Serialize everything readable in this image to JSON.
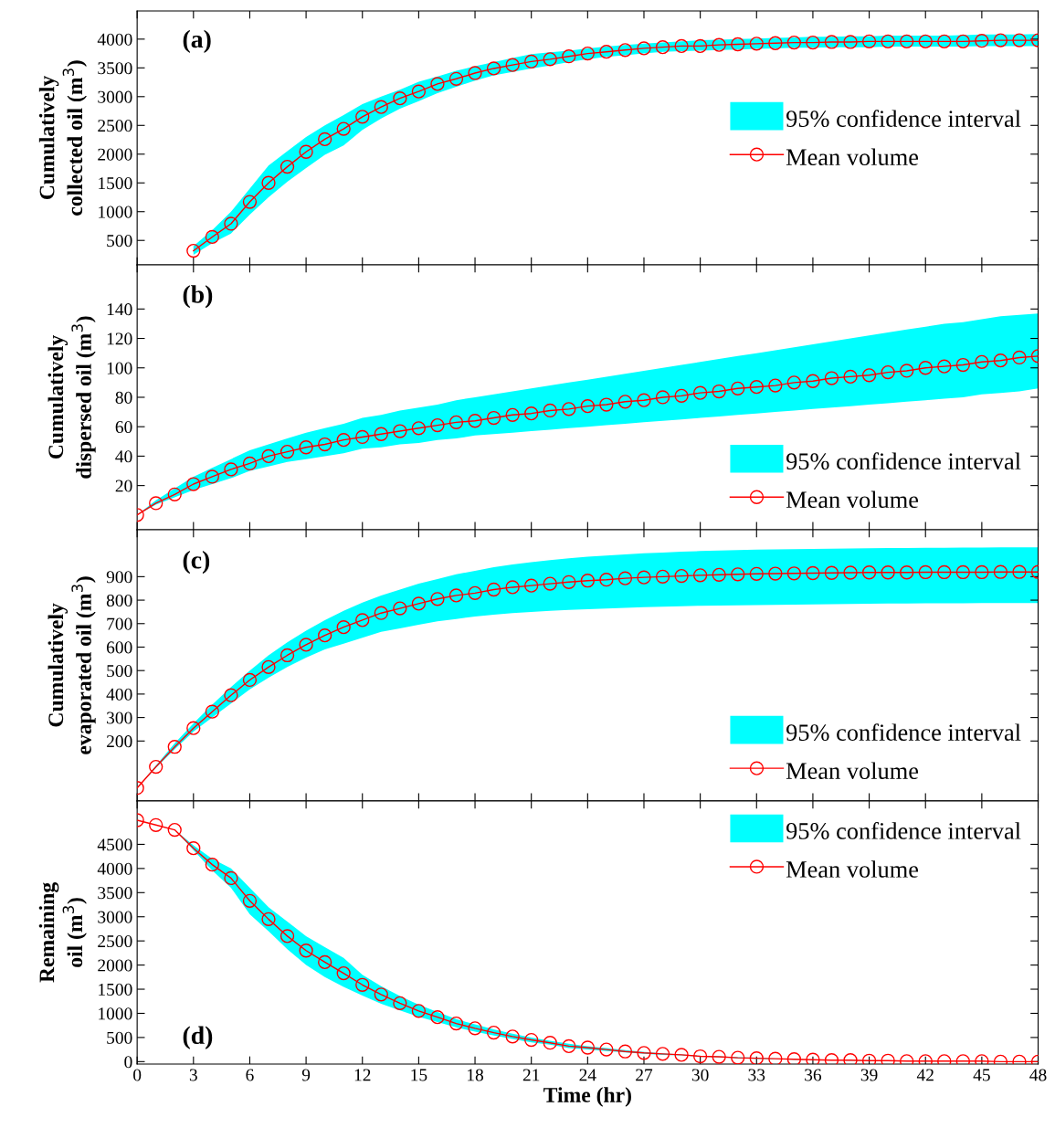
{
  "chart_data": [
    {
      "type": "line",
      "ylabel": "Cumulatively\ncollected oil (m$^{3}$)",
      "annotations": [
        "(a)",
        "95% confidence interval"
      ],
      "xlim": [
        0,
        48
      ],
      "ylim": [
        75,
        4490
      ],
      "xticks": [
        0,
        3,
        6,
        9,
        12,
        15,
        18,
        21,
        24,
        27,
        30,
        33,
        36,
        39,
        42,
        45,
        48
      ],
      "yticks": [
        500,
        1000,
        1500,
        2000,
        2500,
        3000,
        3500,
        4000
      ],
      "tick_labels": "y",
      "legend": "center right",
      "grid": false,
      "marker": "circle",
      "line_style": "solid",
      "series": [
        {
          "name": "Mean volume",
          "color": "#ff0000",
          "x": [
            3,
            4,
            5,
            6,
            7,
            8,
            9,
            10,
            11,
            12,
            13,
            14,
            15,
            16,
            17,
            18,
            19,
            20,
            21,
            22,
            23,
            24,
            25,
            26,
            27,
            28,
            29,
            30,
            31,
            32,
            33,
            34,
            35,
            36,
            37,
            38,
            39,
            40,
            41,
            42,
            43,
            44,
            45,
            46,
            47,
            48
          ],
          "values": [
            320,
            560,
            790,
            1170,
            1500,
            1780,
            2040,
            2260,
            2440,
            2650,
            2820,
            2970,
            3090,
            3220,
            3310,
            3410,
            3490,
            3550,
            3610,
            3650,
            3700,
            3750,
            3780,
            3810,
            3840,
            3860,
            3880,
            3880,
            3900,
            3910,
            3920,
            3930,
            3940,
            3940,
            3950,
            3950,
            3960,
            3960,
            3960,
            3960,
            3960,
            3960,
            3970,
            3980,
            3980,
            3980
          ],
          "lower": [
            250,
            450,
            620,
            950,
            1250,
            1520,
            1760,
            1990,
            2150,
            2420,
            2620,
            2790,
            2920,
            3060,
            3170,
            3280,
            3370,
            3430,
            3490,
            3540,
            3600,
            3650,
            3690,
            3720,
            3750,
            3780,
            3790,
            3800,
            3810,
            3820,
            3830,
            3840,
            3850,
            3850,
            3860,
            3860,
            3860,
            3870,
            3870,
            3870,
            3870,
            3870,
            3880,
            3880,
            3880,
            3880
          ],
          "upper": [
            400,
            680,
            1000,
            1400,
            1800,
            2050,
            2300,
            2500,
            2680,
            2870,
            3000,
            3120,
            3260,
            3350,
            3450,
            3530,
            3600,
            3670,
            3740,
            3770,
            3800,
            3840,
            3870,
            3900,
            3920,
            3940,
            3960,
            3980,
            3990,
            4000,
            4010,
            4020,
            4030,
            4040,
            4040,
            4050,
            4050,
            4060,
            4060,
            4060,
            4060,
            4070,
            4080,
            4080,
            4080,
            4090
          ]
        }
      ]
    },
    {
      "type": "line",
      "ylabel": "Cumulatively\ndispersed oil (m$^{3}$)",
      "annotations": [
        "(b)",
        "95% confidence interval"
      ],
      "x": [
        0,
        1,
        2,
        3,
        4,
        5,
        6,
        7,
        8,
        9,
        10,
        11,
        12,
        13,
        14,
        15,
        16,
        17,
        18,
        19,
        20,
        21,
        22,
        23,
        24,
        25,
        26,
        27,
        28,
        29,
        30,
        31,
        32,
        33,
        34,
        35,
        36,
        37,
        38,
        39,
        40,
        41,
        42,
        43,
        44,
        45,
        46,
        47,
        48
      ],
      "xlim": [
        0,
        48
      ],
      "ylim": [
        -10,
        170
      ],
      "xticks": [
        0,
        3,
        6,
        9,
        12,
        15,
        18,
        21,
        24,
        27,
        30,
        33,
        36,
        39,
        42,
        45,
        48
      ],
      "yticks": [
        20,
        40,
        60,
        80,
        100,
        120,
        140
      ],
      "tick_labels": "y",
      "legend": "bottom right",
      "grid": false,
      "marker": "circle",
      "line_style": "solid",
      "series": [
        {
          "name": "Mean volume",
          "color": "#ff0000",
          "values": [
            0,
            8,
            14,
            21,
            26,
            31,
            35,
            40,
            43,
            46,
            48,
            51,
            53,
            55,
            57,
            59,
            61,
            63,
            64,
            66,
            68,
            69,
            71,
            72,
            74,
            75,
            77,
            78,
            80,
            81,
            83,
            84,
            86,
            87,
            88,
            90,
            91,
            93,
            94,
            95,
            97,
            98,
            100,
            101,
            102,
            104,
            105,
            107,
            108
          ],
          "lower": [
            0,
            7,
            12,
            17,
            21,
            25,
            30,
            33,
            36,
            38,
            40,
            42,
            45,
            46,
            48,
            49,
            51,
            52,
            54,
            55,
            56,
            57,
            58,
            59,
            60,
            61,
            62,
            63,
            64,
            65,
            66,
            67,
            68,
            69,
            70,
            71,
            72,
            73,
            74,
            75,
            76,
            77,
            78,
            79,
            80,
            82,
            83,
            84,
            86
          ],
          "upper": [
            0,
            10,
            18,
            26,
            32,
            38,
            44,
            48,
            52,
            56,
            59,
            62,
            66,
            68,
            71,
            73,
            75,
            78,
            80,
            82,
            84,
            86,
            88,
            90,
            92,
            94,
            96,
            98,
            100,
            102,
            104,
            106,
            108,
            110,
            112,
            114,
            116,
            118,
            120,
            122,
            124,
            126,
            128,
            130,
            131,
            133,
            135,
            136,
            137
          ]
        }
      ]
    },
    {
      "type": "line",
      "ylabel": "Cumulatively\nevaporated oil (m$^{3}$)",
      "annotations": [
        "(c)",
        "95% confidence interval"
      ],
      "x": [
        0,
        1,
        2,
        3,
        4,
        5,
        6,
        7,
        8,
        9,
        10,
        11,
        12,
        13,
        14,
        15,
        16,
        17,
        18,
        19,
        20,
        21,
        22,
        23,
        24,
        25,
        26,
        27,
        28,
        29,
        30,
        31,
        32,
        33,
        34,
        35,
        36,
        37,
        38,
        39,
        40,
        41,
        42,
        43,
        44,
        45,
        46,
        47,
        48
      ],
      "xlim": [
        0,
        48
      ],
      "ylim": [
        -55,
        1100
      ],
      "xticks": [
        0,
        3,
        6,
        9,
        12,
        15,
        18,
        21,
        24,
        27,
        30,
        33,
        36,
        39,
        42,
        45,
        48
      ],
      "yticks": [
        200,
        300,
        400,
        500,
        600,
        700,
        800,
        900
      ],
      "tick_labels": "y",
      "legend": "bottom right",
      "grid": false,
      "marker": "circle",
      "line_style": "solid",
      "series": [
        {
          "name": "Mean volume",
          "color": "#ff0000",
          "values": [
            0,
            90,
            175,
            255,
            325,
            395,
            460,
            515,
            565,
            610,
            650,
            685,
            715,
            745,
            765,
            785,
            805,
            820,
            830,
            845,
            855,
            862,
            870,
            877,
            883,
            887,
            893,
            897,
            900,
            903,
            906,
            908,
            910,
            912,
            913,
            914,
            915,
            916,
            917,
            918,
            918,
            918,
            919,
            919,
            919,
            919,
            920,
            920,
            920
          ],
          "lower": [
            0,
            85,
            165,
            240,
            300,
            360,
            420,
            470,
            515,
            555,
            590,
            615,
            640,
            665,
            680,
            695,
            710,
            720,
            730,
            738,
            745,
            750,
            755,
            758,
            761,
            764,
            767,
            770,
            772,
            774,
            776,
            777,
            778,
            779,
            780,
            781,
            782,
            783,
            784,
            785,
            786,
            786,
            787,
            787,
            787,
            788,
            788,
            788,
            788
          ],
          "upper": [
            0,
            95,
            190,
            275,
            355,
            430,
            500,
            565,
            620,
            670,
            715,
            755,
            790,
            820,
            845,
            870,
            890,
            910,
            925,
            940,
            952,
            962,
            970,
            978,
            985,
            990,
            995,
            1000,
            1003,
            1006,
            1009,
            1011,
            1013,
            1015,
            1016,
            1017,
            1018,
            1019,
            1020,
            1021,
            1022,
            1022,
            1023,
            1023,
            1024,
            1024,
            1025,
            1025,
            1025
          ]
        }
      ]
    },
    {
      "type": "line",
      "ylabel": "Remaining\noil (m$^{3}$)",
      "xlabel": "Time (hr)",
      "annotations": [
        "(d)",
        "95% confidence interval"
      ],
      "x": [
        0,
        1,
        2,
        3,
        4,
        5,
        6,
        7,
        8,
        9,
        10,
        11,
        12,
        13,
        14,
        15,
        16,
        17,
        18,
        19,
        20,
        21,
        22,
        23,
        24,
        25,
        26,
        27,
        28,
        29,
        30,
        31,
        32,
        33,
        34,
        35,
        36,
        37,
        38,
        39,
        40,
        41,
        42,
        43,
        44,
        45,
        46,
        47,
        48
      ],
      "xlim": [
        0,
        48
      ],
      "ylim": [
        -50,
        5400
      ],
      "xticks": [
        0,
        3,
        6,
        9,
        12,
        15,
        18,
        21,
        24,
        27,
        30,
        33,
        36,
        39,
        42,
        45,
        48
      ],
      "yticks": [
        0,
        500,
        1000,
        1500,
        2000,
        2500,
        3000,
        3500,
        4000,
        4500
      ],
      "legend": "top right",
      "grid": false,
      "marker": "circle",
      "line_style": "solid",
      "series": [
        {
          "name": "Mean volume",
          "color": "#ff0000",
          "values": [
            5000,
            4900,
            4800,
            4420,
            4080,
            3800,
            3330,
            2950,
            2600,
            2300,
            2060,
            1830,
            1590,
            1390,
            1210,
            1050,
            920,
            790,
            690,
            600,
            520,
            450,
            390,
            320,
            290,
            250,
            210,
            180,
            160,
            140,
            110,
            100,
            80,
            70,
            60,
            50,
            40,
            30,
            30,
            20,
            20,
            10,
            10,
            10,
            10,
            10,
            0,
            0,
            0
          ],
          "lower": [
            5000,
            4900,
            4800,
            4380,
            3960,
            3600,
            3050,
            2700,
            2330,
            2000,
            1750,
            1550,
            1370,
            1200,
            1060,
            930,
            820,
            710,
            620,
            540,
            470,
            400,
            350,
            280,
            250,
            220,
            190,
            160,
            140,
            130,
            100,
            90,
            70,
            60,
            50,
            40,
            40,
            30,
            20,
            20,
            10,
            10,
            10,
            10,
            10,
            10,
            0,
            0,
            0
          ],
          "upper": [
            5000,
            4900,
            4800,
            4480,
            4200,
            4000,
            3600,
            3200,
            2900,
            2600,
            2370,
            2150,
            1800,
            1560,
            1360,
            1180,
            1030,
            880,
            770,
            670,
            580,
            500,
            430,
            370,
            320,
            280,
            240,
            200,
            170,
            150,
            120,
            110,
            90,
            80,
            60,
            50,
            40,
            30,
            30,
            20,
            20,
            10,
            10,
            10,
            10,
            10,
            0,
            0,
            0
          ]
        }
      ]
    }
  ]
}
